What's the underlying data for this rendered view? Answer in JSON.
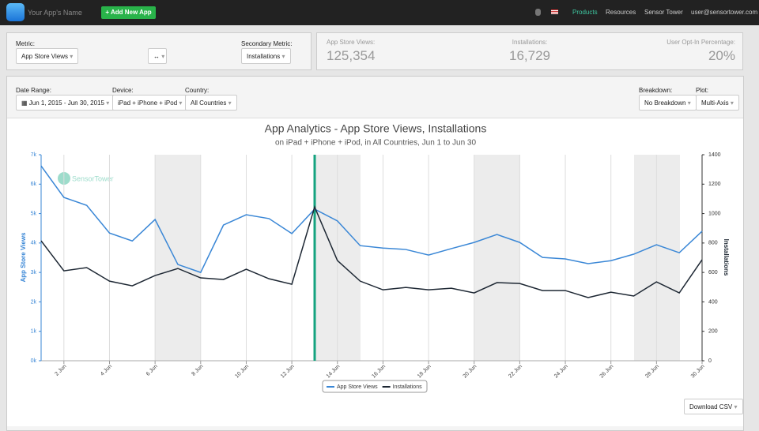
{
  "nav": {
    "app_name": "Your App's Name",
    "add_button": "Add New App",
    "links": [
      "Products",
      "Resources",
      "Sensor Tower",
      "user@sensortower.com"
    ]
  },
  "controls": {
    "metric_label": "Metric:",
    "metric": "App Store Views",
    "secondary_label": "Secondary Metric:",
    "secondary": "Installations"
  },
  "stats": [
    {
      "label": "App Store Views:",
      "value": "125,354"
    },
    {
      "label": "Installations:",
      "value": "16,729"
    },
    {
      "label": "User Opt-In Percentage:",
      "value": "20%"
    }
  ],
  "filters": {
    "date_label": "Date Range:",
    "date": "Jun 1, 2015 - Jun 30, 2015",
    "device_label": "Device:",
    "device": "iPad + iPhone + iPod",
    "country_label": "Country:",
    "country": "All Countries",
    "breakdown_label": "Breakdown:",
    "breakdown": "No Breakdown",
    "plot_label": "Plot:",
    "plot": "Multi-Axis"
  },
  "chart_data": {
    "type": "line",
    "title": "App Analytics - App Store Views, Installations",
    "subtitle": "on iPad + iPhone + iPod, in All Countries, Jun 1 to Jun 30",
    "watermark": "SensorTower",
    "y_label": "App Store Views",
    "y2_label": "Installations",
    "categories": [
      null,
      "2 Jun",
      null,
      "4 Jun",
      null,
      "6 Jun",
      null,
      "8 Jun",
      null,
      "10 Jun",
      null,
      "12 Jun",
      null,
      "14 Jun",
      null,
      "16 Jun",
      null,
      "18 Jun",
      null,
      "20 Jun",
      null,
      "22 Jun",
      null,
      "24 Jun",
      null,
      "26 Jun",
      null,
      "28 Jun",
      null,
      "30 Jun"
    ],
    "series": [
      {
        "name": "App Store Views",
        "color": "#3a87d6",
        "values": [
          6620,
          5550,
          5280,
          4340,
          4070,
          4800,
          3270,
          3000,
          4610,
          4960,
          4830,
          4320,
          5150,
          4750,
          3910,
          3830,
          3780,
          3590,
          3810,
          4020,
          4290,
          4020,
          3510,
          3460,
          3300,
          3400,
          3620,
          3940,
          3670,
          4400
        ]
      },
      {
        "name": "Installations",
        "color": "#1d2733",
        "axis": "y2",
        "values": [
          815,
          611,
          633,
          541,
          509,
          579,
          627,
          563,
          552,
          622,
          557,
          520,
          1045,
          681,
          541,
          482,
          498,
          482,
          493,
          461,
          531,
          525,
          477,
          477,
          429,
          466,
          440,
          536,
          461,
          686
        ]
      }
    ],
    "ylim": [
      0,
      7000
    ],
    "yticks": [
      {
        "value": 0,
        "label": "0k"
      },
      {
        "value": 1000,
        "label": "1k"
      },
      {
        "value": 2000,
        "label": "2k"
      },
      {
        "value": 3000,
        "label": "3k"
      },
      {
        "value": 4000,
        "label": "4k"
      },
      {
        "value": 5000,
        "label": "5k"
      },
      {
        "value": 6000,
        "label": "6k"
      },
      {
        "value": 7000,
        "label": "7k"
      }
    ],
    "y2lim": [
      0,
      1400
    ],
    "y2ticks": [
      0,
      200,
      400,
      600,
      800,
      1000,
      1200,
      1400
    ],
    "x_grid": true,
    "legend": "bottom"
  },
  "download": "Download CSV"
}
